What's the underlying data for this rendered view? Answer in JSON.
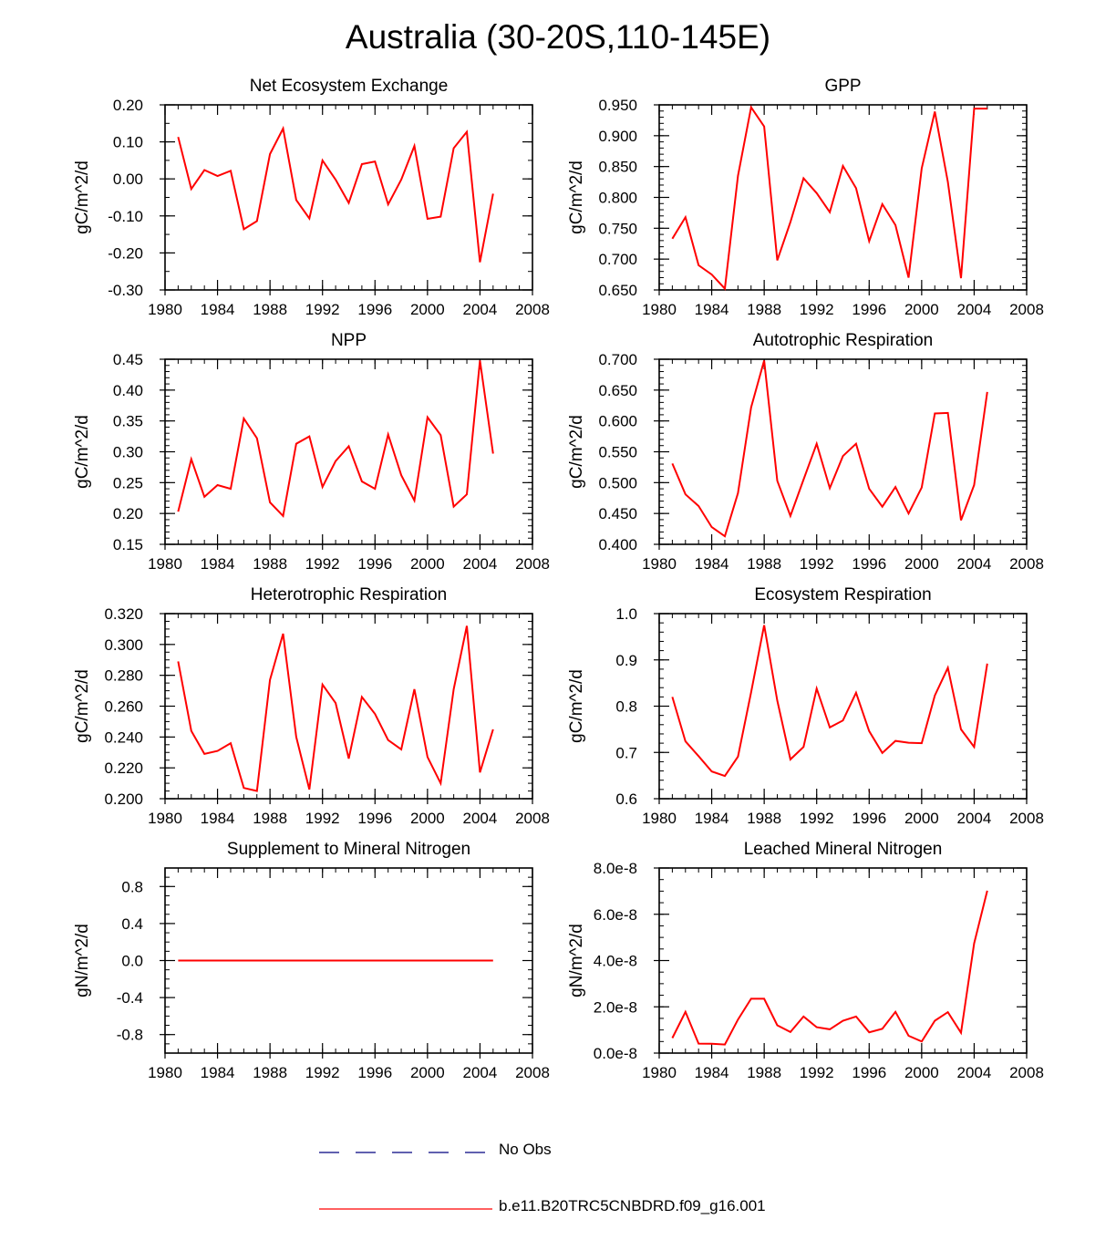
{
  "title": "Australia (30-20S,110-145E)",
  "colors": {
    "model": "#ff0000",
    "obs": "#000080",
    "axis": "#000000"
  },
  "legend": {
    "obs_label": "No Obs",
    "model_label": "b.e11.B20TRC5CNBDRD.f09_g16.001"
  },
  "chart_data": [
    {
      "type": "line",
      "title": "Net Ecosystem Exchange",
      "ylabel": "gC/m^2/d",
      "xlim": [
        1980,
        2008
      ],
      "xticks": [
        1980,
        1984,
        1988,
        1992,
        1996,
        2000,
        2004,
        2008
      ],
      "x_tick_labels": [
        "1980",
        "1984",
        "1988",
        "1992",
        "1996",
        "2000",
        "2004",
        "2008"
      ],
      "ylim": [
        -0.3,
        0.2
      ],
      "yticks": [
        -0.3,
        -0.2,
        -0.1,
        0.0,
        0.1,
        0.2
      ],
      "y_tick_labels": [
        "-0.30",
        "-0.20",
        "-0.10",
        "0.00",
        "0.10",
        "0.20"
      ],
      "y_minor_step": 0.05,
      "x": [
        1981,
        1982,
        1983,
        1984,
        1985,
        1986,
        1987,
        1988,
        1989,
        1990,
        1991,
        1992,
        1993,
        1994,
        1995,
        1996,
        1997,
        1998,
        1999,
        2000,
        2001,
        2002,
        2003,
        2004,
        2005
      ],
      "values": [
        0.113,
        -0.027,
        0.024,
        0.008,
        0.022,
        -0.136,
        -0.114,
        0.067,
        0.136,
        -0.057,
        -0.107,
        0.05,
        -0.002,
        -0.065,
        0.04,
        0.047,
        -0.069,
        -0.002,
        0.089,
        -0.108,
        -0.102,
        0.083,
        0.127,
        -0.225,
        -0.04
      ]
    },
    {
      "type": "line",
      "title": "GPP",
      "ylabel": "gC/m^2/d",
      "xlim": [
        1980,
        2008
      ],
      "xticks": [
        1980,
        1984,
        1988,
        1992,
        1996,
        2000,
        2004,
        2008
      ],
      "x_tick_labels": [
        "1980",
        "1984",
        "1988",
        "1992",
        "1996",
        "2000",
        "2004",
        "2008"
      ],
      "ylim": [
        0.65,
        0.95
      ],
      "yticks": [
        0.65,
        0.7,
        0.75,
        0.8,
        0.85,
        0.9,
        0.95
      ],
      "y_tick_labels": [
        "0.650",
        "0.700",
        "0.750",
        "0.800",
        "0.850",
        "0.900",
        "0.950"
      ],
      "y_minor_step": 0.01,
      "x": [
        1981,
        1982,
        1983,
        1984,
        1985,
        1986,
        1987,
        1988,
        1989,
        1990,
        1991,
        1992,
        1993,
        1994,
        1995,
        1996,
        1997,
        1998,
        1999,
        2000,
        2001,
        2002,
        2003,
        2004,
        2005
      ],
      "values": [
        0.733,
        0.768,
        0.69,
        0.675,
        0.652,
        0.835,
        0.946,
        0.915,
        0.698,
        0.76,
        0.831,
        0.807,
        0.776,
        0.851,
        0.815,
        0.729,
        0.789,
        0.755,
        0.67,
        0.847,
        0.939,
        0.825,
        0.669,
        0.944,
        0.944
      ]
    },
    {
      "type": "line",
      "title": "NPP",
      "ylabel": "gC/m^2/d",
      "xlim": [
        1980,
        2008
      ],
      "xticks": [
        1980,
        1984,
        1988,
        1992,
        1996,
        2000,
        2004,
        2008
      ],
      "x_tick_labels": [
        "1980",
        "1984",
        "1988",
        "1992",
        "1996",
        "2000",
        "2004",
        "2008"
      ],
      "ylim": [
        0.15,
        0.45
      ],
      "yticks": [
        0.15,
        0.2,
        0.25,
        0.3,
        0.35,
        0.4,
        0.45
      ],
      "y_tick_labels": [
        "0.15",
        "0.20",
        "0.25",
        "0.30",
        "0.35",
        "0.40",
        "0.45"
      ],
      "y_minor_step": 0.01,
      "x": [
        1981,
        1982,
        1983,
        1984,
        1985,
        1986,
        1987,
        1988,
        1989,
        1990,
        1991,
        1992,
        1993,
        1994,
        1995,
        1996,
        1997,
        1998,
        1999,
        2000,
        2001,
        2002,
        2003,
        2004,
        2005
      ],
      "values": [
        0.203,
        0.288,
        0.227,
        0.246,
        0.24,
        0.354,
        0.322,
        0.218,
        0.196,
        0.313,
        0.325,
        0.243,
        0.285,
        0.309,
        0.252,
        0.24,
        0.328,
        0.262,
        0.221,
        0.356,
        0.327,
        0.211,
        0.231,
        0.448,
        0.297
      ]
    },
    {
      "type": "line",
      "title": "Autotrophic Respiration",
      "ylabel": "gC/m^2/d",
      "xlim": [
        1980,
        2008
      ],
      "xticks": [
        1980,
        1984,
        1988,
        1992,
        1996,
        2000,
        2004,
        2008
      ],
      "x_tick_labels": [
        "1980",
        "1984",
        "1988",
        "1992",
        "1996",
        "2000",
        "2004",
        "2008"
      ],
      "ylim": [
        0.4,
        0.7
      ],
      "yticks": [
        0.4,
        0.45,
        0.5,
        0.55,
        0.6,
        0.65,
        0.7
      ],
      "y_tick_labels": [
        "0.400",
        "0.450",
        "0.500",
        "0.550",
        "0.600",
        "0.650",
        "0.700"
      ],
      "y_minor_step": 0.01,
      "x": [
        1981,
        1982,
        1983,
        1984,
        1985,
        1986,
        1987,
        1988,
        1989,
        1990,
        1991,
        1992,
        1993,
        1994,
        1995,
        1996,
        1997,
        1998,
        1999,
        2000,
        2001,
        2002,
        2003,
        2004,
        2005
      ],
      "values": [
        0.531,
        0.481,
        0.462,
        0.428,
        0.413,
        0.483,
        0.622,
        0.698,
        0.503,
        0.446,
        0.505,
        0.563,
        0.491,
        0.543,
        0.563,
        0.49,
        0.461,
        0.493,
        0.45,
        0.492,
        0.612,
        0.613,
        0.439,
        0.496,
        0.647
      ]
    },
    {
      "type": "line",
      "title": "Heterotrophic Respiration",
      "ylabel": "gC/m^2/d",
      "xlim": [
        1980,
        2008
      ],
      "xticks": [
        1980,
        1984,
        1988,
        1992,
        1996,
        2000,
        2004,
        2008
      ],
      "x_tick_labels": [
        "1980",
        "1984",
        "1988",
        "1992",
        "1996",
        "2000",
        "2004",
        "2008"
      ],
      "ylim": [
        0.2,
        0.32
      ],
      "yticks": [
        0.2,
        0.22,
        0.24,
        0.26,
        0.28,
        0.3,
        0.32
      ],
      "y_tick_labels": [
        "0.200",
        "0.220",
        "0.240",
        "0.260",
        "0.280",
        "0.300",
        "0.320"
      ],
      "y_minor_step": 0.005,
      "x": [
        1981,
        1982,
        1983,
        1984,
        1985,
        1986,
        1987,
        1988,
        1989,
        1990,
        1991,
        1992,
        1993,
        1994,
        1995,
        1996,
        1997,
        1998,
        1999,
        2000,
        2001,
        2002,
        2003,
        2004,
        2005
      ],
      "values": [
        0.289,
        0.244,
        0.229,
        0.231,
        0.236,
        0.207,
        0.205,
        0.277,
        0.307,
        0.24,
        0.206,
        0.274,
        0.262,
        0.226,
        0.266,
        0.255,
        0.238,
        0.232,
        0.271,
        0.227,
        0.21,
        0.271,
        0.312,
        0.217,
        0.245
      ]
    },
    {
      "type": "line",
      "title": "Ecosystem Respiration",
      "ylabel": "gC/m^2/d",
      "xlim": [
        1980,
        2008
      ],
      "xticks": [
        1980,
        1984,
        1988,
        1992,
        1996,
        2000,
        2004,
        2008
      ],
      "x_tick_labels": [
        "1980",
        "1984",
        "1988",
        "1992",
        "1996",
        "2000",
        "2004",
        "2008"
      ],
      "ylim": [
        0.6,
        1.0
      ],
      "yticks": [
        0.6,
        0.7,
        0.8,
        0.9,
        1.0
      ],
      "y_tick_labels": [
        "0.6",
        "0.7",
        "0.8",
        "0.9",
        "1.0"
      ],
      "y_minor_step": 0.02,
      "x": [
        1981,
        1982,
        1983,
        1984,
        1985,
        1986,
        1987,
        1988,
        1989,
        1990,
        1991,
        1992,
        1993,
        1994,
        1995,
        1996,
        1997,
        1998,
        1999,
        2000,
        2001,
        2002,
        2003,
        2004,
        2005
      ],
      "values": [
        0.82,
        0.724,
        0.692,
        0.659,
        0.649,
        0.691,
        0.83,
        0.975,
        0.812,
        0.685,
        0.712,
        0.838,
        0.754,
        0.769,
        0.829,
        0.746,
        0.699,
        0.725,
        0.721,
        0.72,
        0.823,
        0.883,
        0.75,
        0.712,
        0.892
      ]
    },
    {
      "type": "line",
      "title": "Supplement to Mineral Nitrogen",
      "ylabel": "gN/m^2/d",
      "xlim": [
        1980,
        2008
      ],
      "xticks": [
        1980,
        1984,
        1988,
        1992,
        1996,
        2000,
        2004,
        2008
      ],
      "x_tick_labels": [
        "1980",
        "1984",
        "1988",
        "1992",
        "1996",
        "2000",
        "2004",
        "2008"
      ],
      "ylim": [
        -1.0,
        1.0
      ],
      "yticks": [
        -0.8,
        -0.4,
        0.0,
        0.4,
        0.8
      ],
      "y_tick_labels": [
        "-0.8",
        "-0.4",
        "0.0",
        "0.4",
        "0.8"
      ],
      "y_minor_step": 0.1,
      "x": [
        1981,
        1982,
        1983,
        1984,
        1985,
        1986,
        1987,
        1988,
        1989,
        1990,
        1991,
        1992,
        1993,
        1994,
        1995,
        1996,
        1997,
        1998,
        1999,
        2000,
        2001,
        2002,
        2003,
        2004,
        2005
      ],
      "values": [
        0,
        0,
        0,
        0,
        0,
        0,
        0,
        0,
        0,
        0,
        0,
        0,
        0,
        0,
        0,
        0,
        0,
        0,
        0,
        0,
        0,
        0,
        0,
        0,
        0
      ]
    },
    {
      "type": "line",
      "title": "Leached Mineral Nitrogen",
      "ylabel": "gN/m^2/d",
      "xlim": [
        1980,
        2008
      ],
      "xticks": [
        1980,
        1984,
        1988,
        1992,
        1996,
        2000,
        2004,
        2008
      ],
      "x_tick_labels": [
        "1980",
        "1984",
        "1988",
        "1992",
        "1996",
        "2000",
        "2004",
        "2008"
      ],
      "ylim": [
        0,
        8e-08
      ],
      "yticks": [
        0,
        2e-08,
        4e-08,
        6e-08,
        8e-08
      ],
      "y_tick_labels": [
        "0.0e-8",
        "2.0e-8",
        "4.0e-8",
        "6.0e-8",
        "8.0e-8"
      ],
      "y_minor_step": 5e-09,
      "x": [
        1981,
        1982,
        1983,
        1984,
        1985,
        1986,
        1987,
        1988,
        1989,
        1990,
        1991,
        1992,
        1993,
        1994,
        1995,
        1996,
        1997,
        1998,
        1999,
        2000,
        2001,
        2002,
        2003,
        2004,
        2005
      ],
      "values": [
        6.5e-09,
        1.78e-08,
        4.1e-09,
        4e-09,
        3.7e-09,
        1.45e-08,
        2.35e-08,
        2.35e-08,
        1.2e-08,
        9.1e-09,
        1.58e-08,
        1.12e-08,
        1.03e-08,
        1.4e-08,
        1.58e-08,
        9e-09,
        1.05e-08,
        1.78e-08,
        7.5e-09,
        5e-09,
        1.4e-08,
        1.77e-08,
        8.8e-09,
        4.74e-08,
        7.02e-08
      ]
    }
  ]
}
